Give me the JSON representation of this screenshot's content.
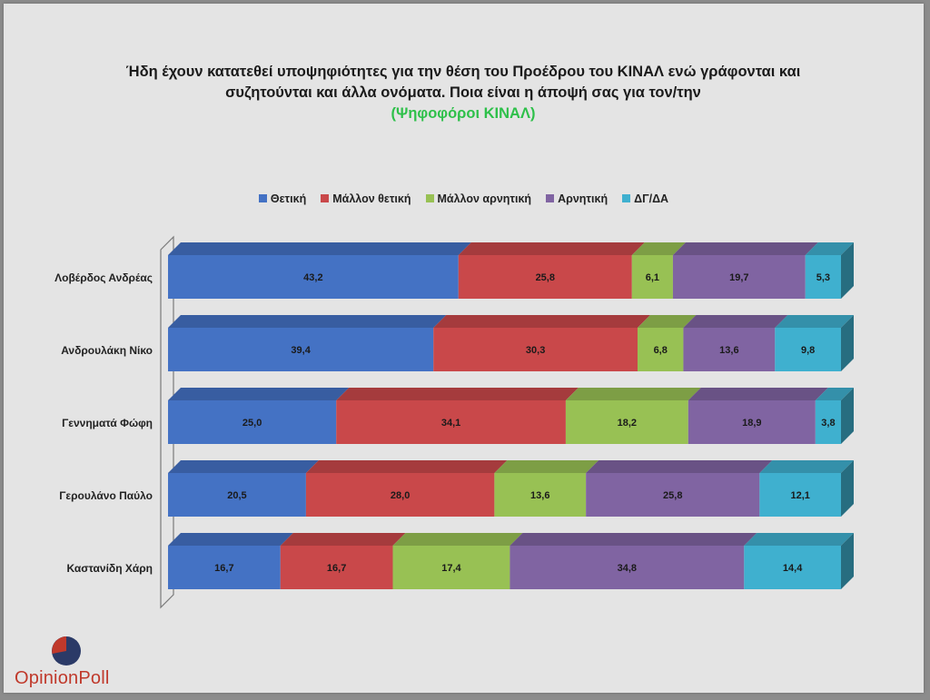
{
  "title": {
    "line1": "Ήδη έχουν κατατεθεί υποψηφιότητες για την θέση του Προέδρου του ΚΙΝΑΛ ενώ γράφονται και",
    "line2": "συζητούνται και άλλα ονόματα. Ποια είναι η άποψή σας για τον/την",
    "subtitle": "(Ψηφοφόροι ΚΙΝΑΛ)"
  },
  "logo": {
    "text": "OpinionPoll"
  },
  "chart_data": {
    "type": "bar",
    "orientation": "horizontal",
    "stacked": true,
    "percent_stacked": true,
    "three_d": true,
    "categories": [
      "Λοβέρδος Ανδρέας",
      "Ανδρουλάκη Νίκο",
      "Γεννηματά Φώφη",
      "Γερουλάνο Παύλο",
      "Καστανίδη Χάρη"
    ],
    "series": [
      {
        "name": "Θετική",
        "color": "#4472c4",
        "values": [
          43.2,
          39.4,
          25.0,
          20.5,
          16.7
        ],
        "labels": [
          "43,2",
          "39,4",
          "25,0",
          "20,5",
          "16,7"
        ]
      },
      {
        "name": "Μάλλον θετική",
        "color": "#c9484a",
        "values": [
          25.8,
          30.3,
          34.1,
          28.0,
          16.7
        ],
        "labels": [
          "25,8",
          "30,3",
          "34,1",
          "28,0",
          "16,7"
        ]
      },
      {
        "name": "Μάλλον αρνητική",
        "color": "#98c154",
        "values": [
          6.1,
          6.8,
          18.2,
          13.6,
          17.4
        ],
        "labels": [
          "6,1",
          "6,8",
          "18,2",
          "13,6",
          "17,4"
        ]
      },
      {
        "name": "Αρνητική",
        "color": "#8064a2",
        "values": [
          19.7,
          13.6,
          18.9,
          25.8,
          34.8
        ],
        "labels": [
          "19,7",
          "13,6",
          "18,9",
          "25,8",
          "34,8"
        ]
      },
      {
        "name": "ΔΓ/ΔΑ",
        "color": "#3fb0cf",
        "values": [
          5.3,
          9.8,
          3.8,
          12.1,
          14.4
        ],
        "labels": [
          "5,3",
          "9,8",
          "3,8",
          "12,1",
          "14,4"
        ]
      }
    ],
    "legend_position": "top",
    "grid": false
  }
}
